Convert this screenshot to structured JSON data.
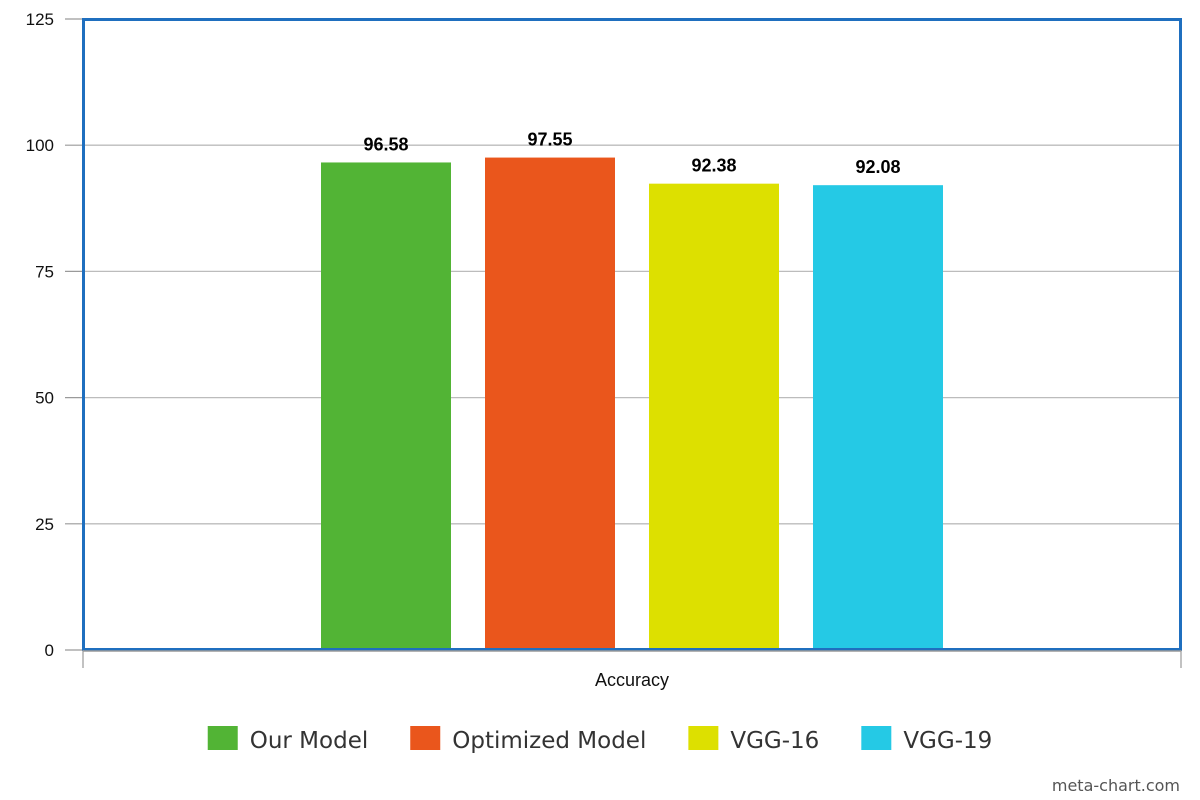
{
  "chart_data": {
    "type": "bar",
    "categories": [
      "Accuracy"
    ],
    "series": [
      {
        "name": "Our Model",
        "values": [
          96.58
        ],
        "color": "#52b435",
        "label": "96.58"
      },
      {
        "name": "Optimized Model",
        "values": [
          97.55
        ],
        "color": "#ea561c",
        "label": "97.55"
      },
      {
        "name": "VGG-16",
        "values": [
          92.38
        ],
        "color": "#dde000",
        "label": "92.38"
      },
      {
        "name": "VGG-19",
        "values": [
          92.08
        ],
        "color": "#25c9e5",
        "label": "92.08"
      }
    ],
    "y_ticks": [
      "0",
      "25",
      "50",
      "75",
      "100",
      "125"
    ],
    "ylim": [
      0,
      125
    ],
    "grid": true,
    "legend": "bottom",
    "title": "",
    "xlabel": "",
    "ylabel": "",
    "frame_color": "#1f6fbf"
  },
  "watermark": "meta-chart.com"
}
